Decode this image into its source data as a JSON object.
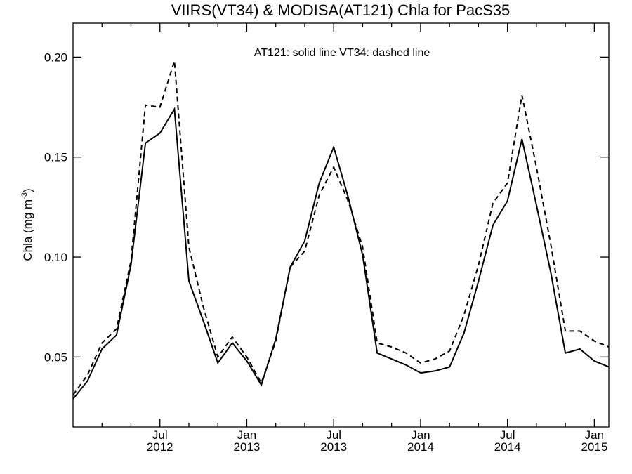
{
  "chart_data": {
    "type": "line",
    "title": "VIIRS(VT34) & MODISA(AT121)  Chla for PacS35",
    "annotation": "AT121: solid line   VT34: dashed line",
    "ylabel": "Chla (mg m",
    "ylabel_sup": "-3",
    "ylabel_close": ")",
    "xlim": [
      "2012-01",
      "2015-02"
    ],
    "ylim": [
      0.015,
      0.217
    ],
    "ylog": false,
    "grid": false,
    "y_ticks": [
      0.05,
      0.1,
      0.15,
      0.2
    ],
    "y_tick_labels": [
      "0.05",
      "0.10",
      "0.15",
      "0.20"
    ],
    "x_major_ticks": [
      {
        "x": "2012-07",
        "month": "Jul",
        "year": "2012"
      },
      {
        "x": "2013-01",
        "month": "Jan",
        "year": "2013"
      },
      {
        "x": "2013-07",
        "month": "Jul",
        "year": "2013"
      },
      {
        "x": "2014-01",
        "month": "Jan",
        "year": "2014"
      },
      {
        "x": "2014-07",
        "month": "Jul",
        "year": "2014"
      },
      {
        "x": "2015-01",
        "month": "Jan",
        "year": "2015"
      }
    ],
    "x_minor_ticks": [
      "2012-03",
      "2012-05",
      "2012-09",
      "2012-11",
      "2013-03",
      "2013-05",
      "2013-09",
      "2013-11",
      "2014-03",
      "2014-05",
      "2014-09",
      "2014-11"
    ],
    "x": [
      "2012-01",
      "2012-02",
      "2012-03",
      "2012-04",
      "2012-05",
      "2012-06",
      "2012-07",
      "2012-08",
      "2012-09",
      "2012-10",
      "2012-11",
      "2012-12",
      "2013-01",
      "2013-02",
      "2013-03",
      "2013-04",
      "2013-05",
      "2013-06",
      "2013-07",
      "2013-08",
      "2013-09",
      "2013-10",
      "2013-11",
      "2013-12",
      "2014-01",
      "2014-02",
      "2014-03",
      "2014-04",
      "2014-05",
      "2014-06",
      "2014-07",
      "2014-08",
      "2014-09",
      "2014-10",
      "2014-11",
      "2014-12",
      "2015-01",
      "2015-02"
    ],
    "series": [
      {
        "name": "AT121",
        "style": "solid",
        "color": "#000000",
        "values": [
          0.029,
          0.038,
          0.054,
          0.061,
          0.096,
          0.157,
          0.162,
          0.174,
          0.088,
          0.068,
          0.047,
          0.057,
          0.048,
          0.036,
          0.059,
          0.095,
          0.108,
          0.137,
          0.155,
          0.13,
          0.101,
          0.052,
          0.049,
          0.046,
          0.042,
          0.043,
          0.045,
          0.062,
          0.088,
          0.116,
          0.128,
          0.159,
          0.126,
          0.092,
          0.052,
          0.054,
          0.048,
          0.045
        ]
      },
      {
        "name": "VT34",
        "style": "dashed",
        "color": "#000000",
        "values": [
          0.031,
          0.041,
          0.057,
          0.064,
          0.098,
          0.176,
          0.175,
          0.198,
          0.105,
          0.075,
          0.05,
          0.06,
          0.05,
          0.037,
          0.058,
          0.095,
          0.103,
          0.131,
          0.145,
          0.128,
          0.105,
          0.057,
          0.055,
          0.052,
          0.047,
          0.049,
          0.053,
          0.071,
          0.096,
          0.127,
          0.137,
          0.181,
          0.145,
          0.106,
          0.063,
          0.063,
          0.058,
          0.055
        ]
      }
    ]
  }
}
